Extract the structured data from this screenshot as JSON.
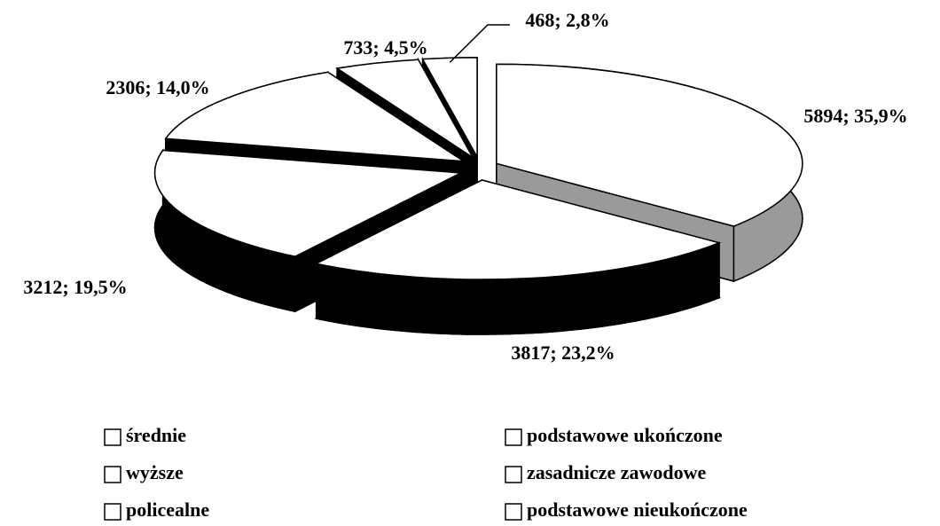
{
  "chart_data": {
    "type": "pie",
    "categories": [
      "średnie",
      "wyższe",
      "policealne",
      "podstawowe ukończone",
      "zasadnicze zawodowe",
      "podstawowe nieukończone"
    ],
    "values": [
      5894,
      3817,
      3212,
      2306,
      733,
      468
    ],
    "value_labels": [
      "5894; 35,9%",
      "3817; 23,2%",
      "3212; 19,5%",
      "2306; 14,0%",
      "733; 4,5%",
      "468; 2,8%"
    ],
    "colors": [
      "#ffffff",
      "#ffffff",
      "#ffffff",
      "#ffffff",
      "#ffffff",
      "#ffffff"
    ],
    "side_colors": [
      "#9a9a9a",
      "#000000",
      "#000000",
      "#000000",
      "#000000",
      "#000000"
    ],
    "legend": "bottom",
    "three_d": true,
    "exploded": true
  }
}
